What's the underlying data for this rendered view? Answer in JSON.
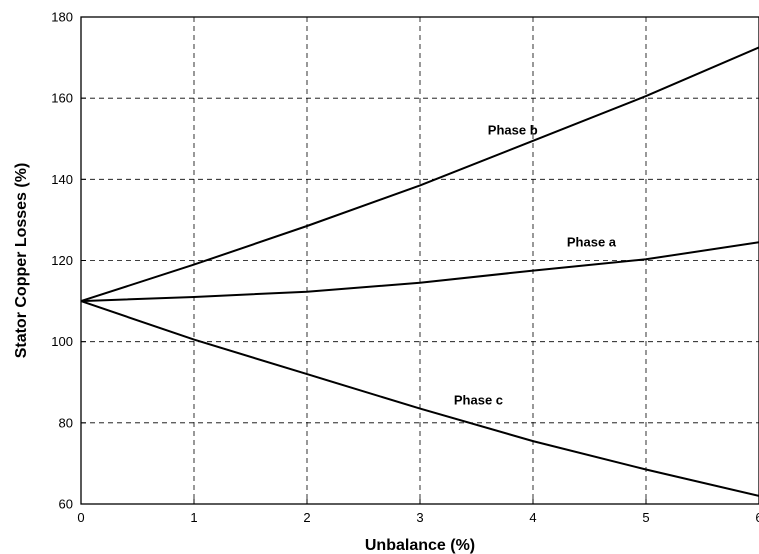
{
  "chart_data": {
    "type": "line",
    "title": "",
    "xlabel": "Unbalance (%)",
    "ylabel": "Stator Copper Losses  (%)",
    "xlim": [
      0,
      6
    ],
    "ylim": [
      60,
      180
    ],
    "xticks": [
      0,
      1,
      2,
      3,
      4,
      5,
      6
    ],
    "yticks": [
      60,
      80,
      100,
      120,
      140,
      160,
      180
    ],
    "xtick_labels": [
      "0",
      "1",
      "2",
      "3",
      "4",
      "5",
      "6"
    ],
    "ytick_labels": [
      "60",
      "80",
      "100",
      "120",
      "140",
      "160",
      "180"
    ],
    "grid": true,
    "legend": "none",
    "series": [
      {
        "name": "Phase b",
        "x": [
          0,
          1,
          2,
          3,
          4,
          5,
          6
        ],
        "y": [
          110,
          119,
          128.5,
          138.5,
          149.5,
          160.5,
          172.5
        ],
        "label_at": [
          3.6,
          151
        ]
      },
      {
        "name": "Phase a",
        "x": [
          0,
          1,
          2,
          3,
          4,
          5,
          6
        ],
        "y": [
          110,
          111,
          112.3,
          114.5,
          117.5,
          120.3,
          124.5
        ],
        "label_at": [
          4.3,
          123.5
        ]
      },
      {
        "name": "Phase c",
        "x": [
          0,
          1,
          2,
          3,
          4,
          5,
          6
        ],
        "y": [
          110,
          100.5,
          92,
          83.5,
          75.5,
          68.5,
          62
        ],
        "label_at": [
          3.3,
          84.5
        ]
      }
    ]
  }
}
